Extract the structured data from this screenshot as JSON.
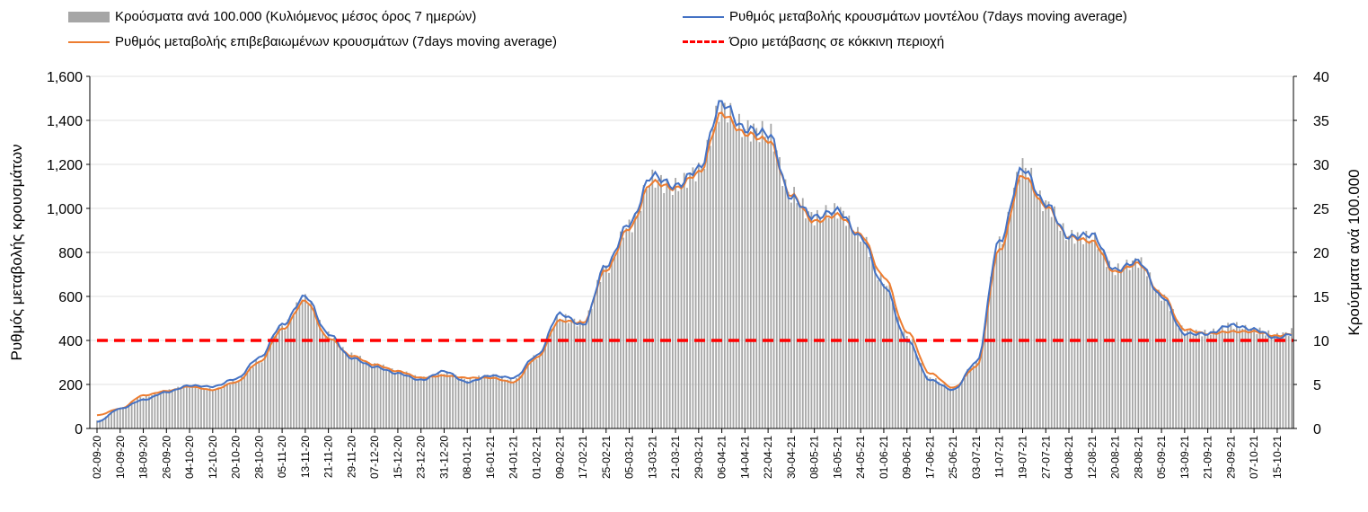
{
  "chart_data": {
    "type": "bar+line",
    "title": "",
    "legend": [
      {
        "label": "Κρούσματα ανά 100.000 (Κυλιόμενος μέσος όρος 7 ημερών)",
        "color": "#a6a6a6",
        "kind": "bar"
      },
      {
        "label": "Ρυθμός μεταβολής κρουσμάτων μοντέλου (7days moving average)",
        "color": "#4472c4",
        "kind": "line"
      },
      {
        "label": "Ρυθμός μεταβολής επιβεβαιωμένων κρουσμάτων (7days moving average)",
        "color": "#ed7d31",
        "kind": "line"
      },
      {
        "label": "Όριο μετάβασης σε κόκκινη περιοχή",
        "color": "#ff0000",
        "kind": "dashed"
      }
    ],
    "legend_position": "top",
    "ylabel": "Ρυθμός μεταβολής κρουσμάτων",
    "y2label": "Κρούσματα ανά 100.000",
    "ylim": [
      0,
      1600
    ],
    "y2lim": [
      0,
      40
    ],
    "yticks": [
      "0",
      "200",
      "400",
      "600",
      "800",
      "1,000",
      "1,200",
      "1,400",
      "1,600"
    ],
    "y2ticks": [
      "0",
      "5",
      "10",
      "15",
      "20",
      "25",
      "30",
      "35",
      "40"
    ],
    "x_step_days": 8,
    "x": [
      "02-09-20",
      "10-09-20",
      "18-09-20",
      "26-09-20",
      "04-10-20",
      "12-10-20",
      "20-10-20",
      "28-10-20",
      "05-11-20",
      "13-11-20",
      "21-11-20",
      "29-11-20",
      "07-12-20",
      "15-12-20",
      "23-12-20",
      "31-12-20",
      "08-01-21",
      "16-01-21",
      "24-01-21",
      "01-02-21",
      "09-02-21",
      "17-02-21",
      "25-02-21",
      "05-03-21",
      "13-03-21",
      "21-03-21",
      "29-03-21",
      "06-04-21",
      "14-04-21",
      "22-04-21",
      "30-04-21",
      "08-05-21",
      "16-05-21",
      "24-05-21",
      "01-06-21",
      "09-06-21",
      "17-06-21",
      "25-06-21",
      "03-07-21",
      "11-07-21",
      "19-07-21",
      "27-07-21",
      "04-08-21",
      "12-08-21",
      "20-08-21",
      "28-08-21",
      "05-09-21",
      "13-09-21",
      "21-09-21",
      "29-09-21",
      "07-10-21",
      "15-10-21"
    ],
    "series": [
      {
        "name": "model",
        "values": [
          30,
          90,
          130,
          165,
          195,
          190,
          225,
          320,
          470,
          600,
          430,
          320,
          280,
          250,
          220,
          260,
          210,
          240,
          230,
          330,
          520,
          470,
          740,
          930,
          1150,
          1100,
          1180,
          1480,
          1360,
          1340,
          1050,
          960,
          990,
          870,
          650,
          400,
          220,
          175,
          300,
          850,
          1180,
          1020,
          870,
          880,
          720,
          760,
          600,
          430,
          430,
          470,
          450,
          410
        ]
      },
      {
        "name": "confirmed",
        "values": [
          60,
          90,
          150,
          170,
          190,
          175,
          210,
          300,
          450,
          580,
          410,
          330,
          290,
          260,
          230,
          240,
          230,
          230,
          210,
          320,
          490,
          480,
          720,
          910,
          1120,
          1090,
          1160,
          1430,
          1340,
          1310,
          1060,
          940,
          970,
          880,
          690,
          440,
          250,
          185,
          280,
          810,
          1150,
          1010,
          870,
          850,
          710,
          750,
          610,
          450,
          430,
          440,
          440,
          420
        ]
      },
      {
        "name": "cases_per_100k",
        "values": [
          0.9,
          2.3,
          3.6,
          4.3,
          4.8,
          4.4,
          5.3,
          7.6,
          11.5,
          14.8,
          10.6,
          8.3,
          7.2,
          6.5,
          5.7,
          6.3,
          5.6,
          6,
          5.5,
          8.1,
          12.6,
          12,
          18.2,
          23,
          28.3,
          27.4,
          29.3,
          36.5,
          34,
          33.6,
          26.5,
          24,
          24.8,
          21.9,
          16.7,
          10.5,
          5.7,
          4.5,
          7.4,
          21,
          29.8,
          25.5,
          21.9,
          21.6,
          18,
          19,
          15.1,
          11.1,
          10.8,
          11.7,
          11.2,
          10.5
        ]
      }
    ],
    "threshold": 400,
    "last_value_day_offset": 5,
    "last_values": {
      "model": 430,
      "confirmed": 430,
      "cases_per_100k": 11
    }
  }
}
